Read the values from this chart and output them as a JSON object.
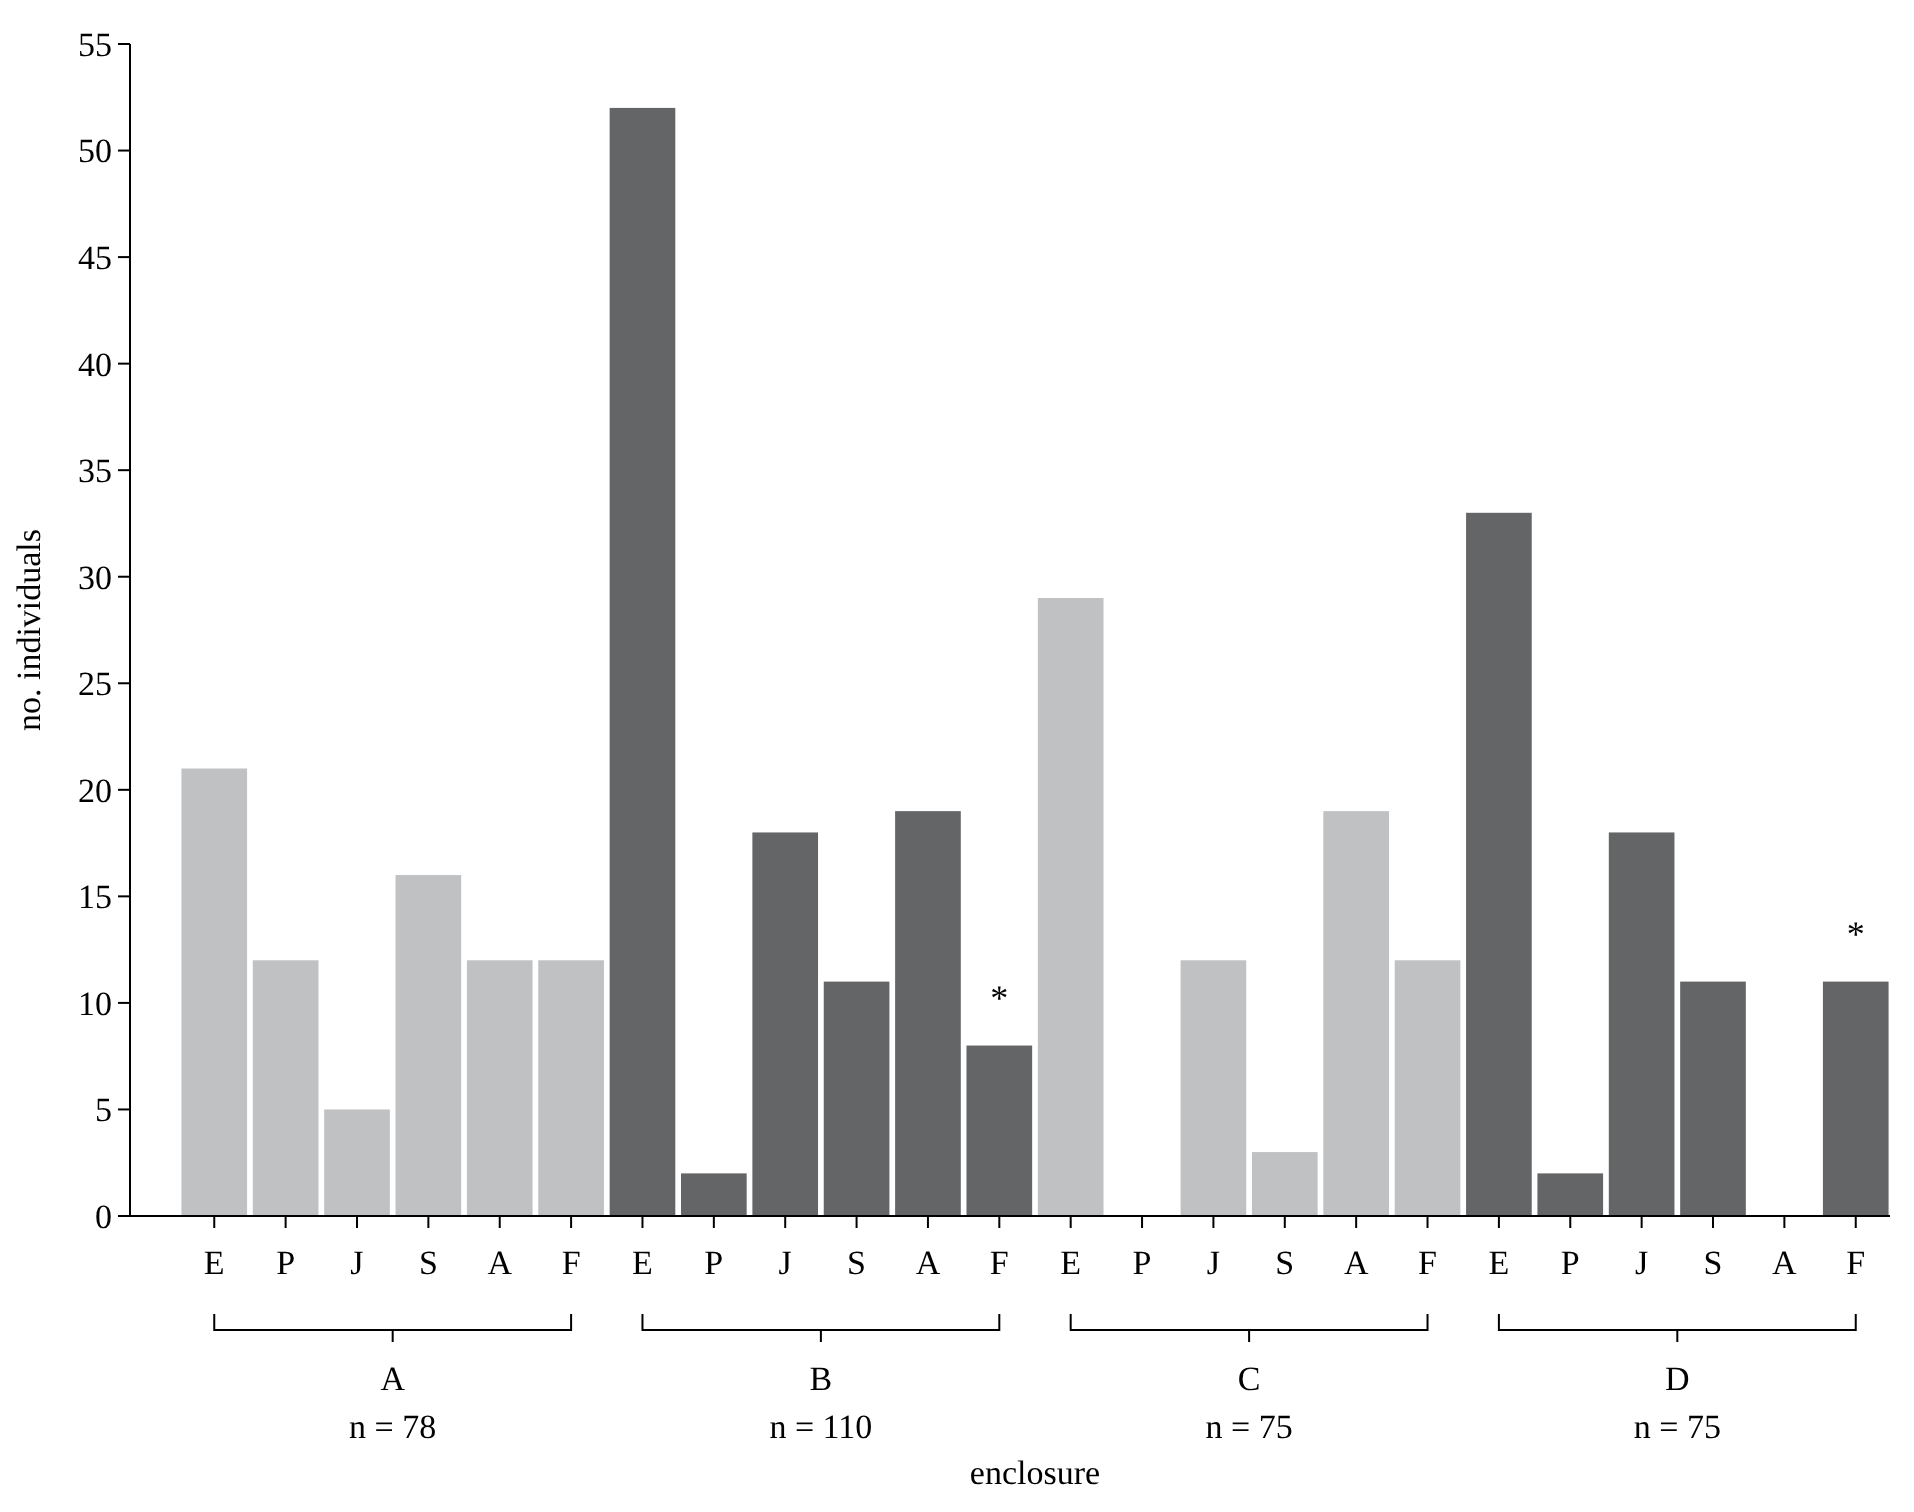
{
  "chart_data": {
    "type": "bar",
    "ylabel": "no. individuals",
    "categories": [
      "E",
      "P",
      "J",
      "S",
      "A",
      "F",
      "E",
      "P",
      "J",
      "S",
      "A",
      "F",
      "E",
      "P",
      "J",
      "S",
      "A",
      "F",
      "E",
      "P",
      "J",
      "S",
      "A",
      "F"
    ],
    "values": [
      21,
      12,
      5,
      16,
      12,
      12,
      52,
      2,
      18,
      11,
      19,
      8,
      29,
      0,
      12,
      3,
      19,
      12,
      33,
      2,
      18,
      11,
      0,
      11
    ],
    "colors": [
      "#c0c1c3",
      "#c0c1c3",
      "#c0c1c3",
      "#c0c1c3",
      "#c0c1c3",
      "#c0c1c3",
      "#646567",
      "#646567",
      "#646567",
      "#646567",
      "#646567",
      "#646567",
      "#c0c1c3",
      "#c0c1c3",
      "#c0c1c3",
      "#c0c1c3",
      "#c0c1c3",
      "#c0c1c3",
      "#646567",
      "#646567",
      "#646567",
      "#646567",
      "#646567",
      "#646567"
    ],
    "ylim": [
      0,
      55
    ],
    "yticks": [
      0,
      5,
      10,
      15,
      20,
      25,
      30,
      35,
      40,
      45,
      50,
      55
    ],
    "grid": false,
    "annotations": [
      "A",
      "n = 78",
      "B",
      "n = 110",
      "C",
      "n = 75",
      "D",
      "n = 75",
      "*",
      "*",
      "enclosure"
    ]
  }
}
